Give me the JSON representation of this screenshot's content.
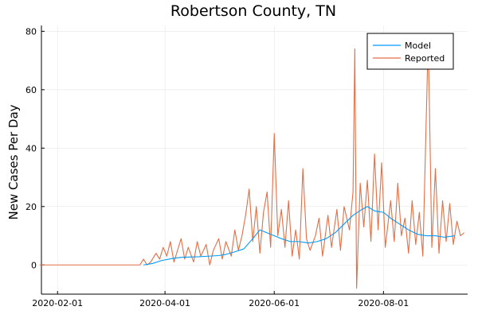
{
  "chart_data": {
    "type": "line",
    "title": "Robertson County, TN",
    "xlabel": "",
    "ylabel": "New Cases Per Day",
    "x_type": "date",
    "xlim": [
      "2020-01-23",
      "2020-09-17"
    ],
    "ylim": [
      -10,
      82
    ],
    "x_ticks": [
      "2020-02-01",
      "2020-04-01",
      "2020-06-01",
      "2020-08-01"
    ],
    "y_ticks": [
      0,
      20,
      40,
      60,
      80
    ],
    "grid": true,
    "legend": "top-right",
    "series": [
      {
        "name": "Model",
        "color": "#009AFA",
        "points": [
          [
            "2020-03-20",
            0
          ],
          [
            "2020-03-25",
            0.5
          ],
          [
            "2020-03-30",
            1.5
          ],
          [
            "2020-04-05",
            2.2
          ],
          [
            "2020-04-10",
            2.6
          ],
          [
            "2020-04-15",
            2.7
          ],
          [
            "2020-04-20",
            2.8
          ],
          [
            "2020-04-25",
            3.0
          ],
          [
            "2020-05-01",
            3.2
          ],
          [
            "2020-05-05",
            3.6
          ],
          [
            "2020-05-10",
            4.5
          ],
          [
            "2020-05-15",
            5.5
          ],
          [
            "2020-05-20",
            9
          ],
          [
            "2020-05-24",
            12
          ],
          [
            "2020-05-28",
            11
          ],
          [
            "2020-06-01",
            10
          ],
          [
            "2020-06-05",
            9
          ],
          [
            "2020-06-10",
            8
          ],
          [
            "2020-06-15",
            8
          ],
          [
            "2020-06-20",
            7.5
          ],
          [
            "2020-06-25",
            8
          ],
          [
            "2020-06-30",
            9
          ],
          [
            "2020-07-05",
            11
          ],
          [
            "2020-07-10",
            14
          ],
          [
            "2020-07-15",
            17
          ],
          [
            "2020-07-20",
            19
          ],
          [
            "2020-07-23",
            20
          ],
          [
            "2020-07-27",
            18.5
          ],
          [
            "2020-08-01",
            18
          ],
          [
            "2020-08-05",
            16
          ],
          [
            "2020-08-10",
            14
          ],
          [
            "2020-08-15",
            12
          ],
          [
            "2020-08-20",
            10.5
          ],
          [
            "2020-08-25",
            10
          ],
          [
            "2020-08-30",
            10
          ],
          [
            "2020-09-04",
            9.5
          ],
          [
            "2020-09-10",
            10
          ]
        ]
      },
      {
        "name": "Reported",
        "color": "#E26F46",
        "points": [
          [
            "2020-01-22",
            0
          ],
          [
            "2020-03-18",
            0
          ],
          [
            "2020-03-20",
            2
          ],
          [
            "2020-03-22",
            0
          ],
          [
            "2020-03-24",
            1
          ],
          [
            "2020-03-27",
            4
          ],
          [
            "2020-03-29",
            2
          ],
          [
            "2020-03-31",
            6
          ],
          [
            "2020-04-02",
            3
          ],
          [
            "2020-04-04",
            8
          ],
          [
            "2020-04-06",
            1
          ],
          [
            "2020-04-08",
            5
          ],
          [
            "2020-04-10",
            9
          ],
          [
            "2020-04-12",
            2
          ],
          [
            "2020-04-14",
            6
          ],
          [
            "2020-04-17",
            1
          ],
          [
            "2020-04-19",
            8
          ],
          [
            "2020-04-21",
            3
          ],
          [
            "2020-04-24",
            7
          ],
          [
            "2020-04-26",
            0
          ],
          [
            "2020-04-28",
            5
          ],
          [
            "2020-05-01",
            9
          ],
          [
            "2020-05-03",
            2
          ],
          [
            "2020-05-05",
            8
          ],
          [
            "2020-05-08",
            3
          ],
          [
            "2020-05-10",
            12
          ],
          [
            "2020-05-12",
            5
          ],
          [
            "2020-05-14",
            10
          ],
          [
            "2020-05-16",
            17
          ],
          [
            "2020-05-18",
            26
          ],
          [
            "2020-05-20",
            8
          ],
          [
            "2020-05-22",
            20
          ],
          [
            "2020-05-24",
            4
          ],
          [
            "2020-05-26",
            18
          ],
          [
            "2020-05-28",
            25
          ],
          [
            "2020-05-30",
            6
          ],
          [
            "2020-06-01",
            45
          ],
          [
            "2020-06-03",
            10
          ],
          [
            "2020-06-05",
            19
          ],
          [
            "2020-06-07",
            6
          ],
          [
            "2020-06-09",
            22
          ],
          [
            "2020-06-11",
            3
          ],
          [
            "2020-06-13",
            12
          ],
          [
            "2020-06-15",
            2
          ],
          [
            "2020-06-17",
            33
          ],
          [
            "2020-06-19",
            9
          ],
          [
            "2020-06-21",
            5
          ],
          [
            "2020-06-24",
            10
          ],
          [
            "2020-06-26",
            16
          ],
          [
            "2020-06-28",
            3
          ],
          [
            "2020-07-01",
            17
          ],
          [
            "2020-07-03",
            6
          ],
          [
            "2020-07-06",
            19
          ],
          [
            "2020-07-08",
            5
          ],
          [
            "2020-07-10",
            20
          ],
          [
            "2020-07-13",
            12
          ],
          [
            "2020-07-15",
            25
          ],
          [
            "2020-07-16",
            74
          ],
          [
            "2020-07-17",
            -8
          ],
          [
            "2020-07-19",
            28
          ],
          [
            "2020-07-21",
            13
          ],
          [
            "2020-07-23",
            29
          ],
          [
            "2020-07-25",
            8
          ],
          [
            "2020-07-27",
            38
          ],
          [
            "2020-07-29",
            12
          ],
          [
            "2020-07-31",
            35
          ],
          [
            "2020-08-02",
            6
          ],
          [
            "2020-08-05",
            22
          ],
          [
            "2020-08-07",
            8
          ],
          [
            "2020-08-09",
            28
          ],
          [
            "2020-08-11",
            10
          ],
          [
            "2020-08-13",
            16
          ],
          [
            "2020-08-15",
            4
          ],
          [
            "2020-08-17",
            22
          ],
          [
            "2020-08-19",
            7
          ],
          [
            "2020-08-21",
            18
          ],
          [
            "2020-08-23",
            3
          ],
          [
            "2020-08-26",
            78
          ],
          [
            "2020-08-28",
            6
          ],
          [
            "2020-08-30",
            33
          ],
          [
            "2020-09-01",
            4
          ],
          [
            "2020-09-03",
            22
          ],
          [
            "2020-09-05",
            8
          ],
          [
            "2020-09-07",
            21
          ],
          [
            "2020-09-09",
            7
          ],
          [
            "2020-09-11",
            15
          ],
          [
            "2020-09-13",
            10
          ],
          [
            "2020-09-15",
            11
          ]
        ]
      }
    ]
  }
}
